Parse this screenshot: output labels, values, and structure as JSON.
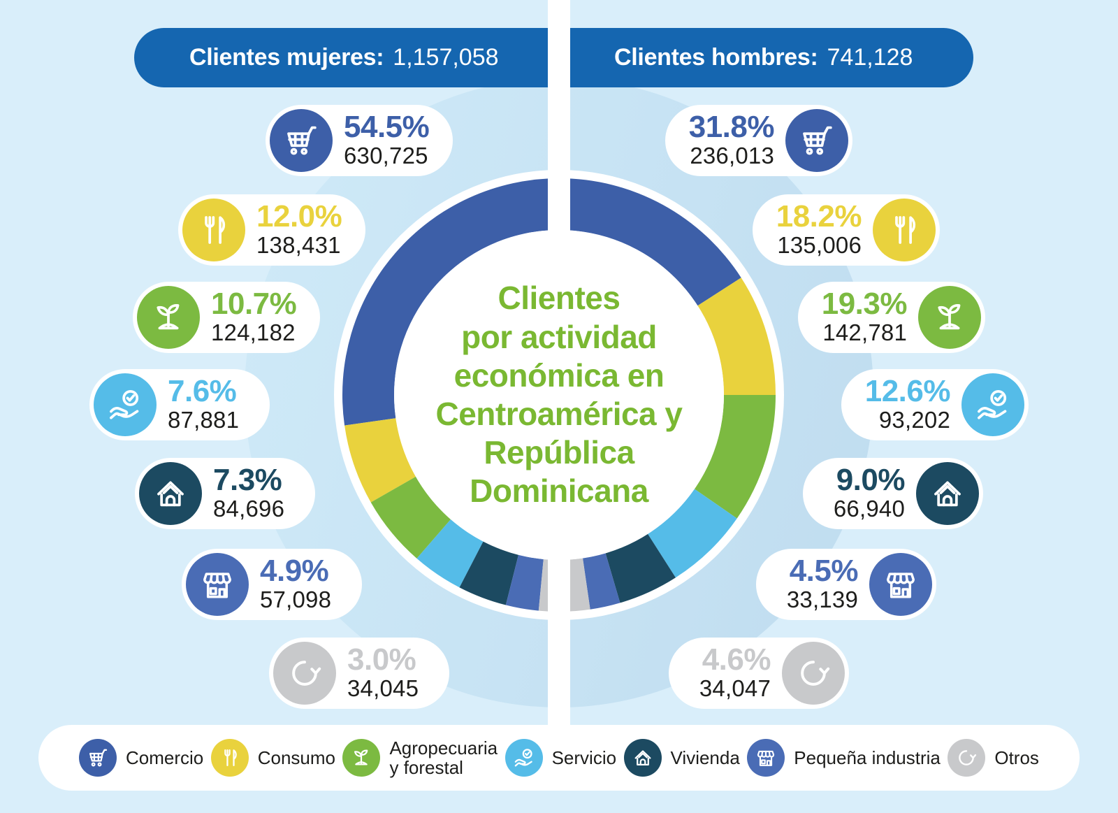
{
  "page": {
    "background_color": "#d9eefa",
    "panel_circle_color": "#c6e2f3",
    "divider_color": "#ffffff",
    "text_color": "#1d1d1b"
  },
  "headers": {
    "bg_color": "#1566b0",
    "women": {
      "label": "Clientes mujeres:",
      "value": "1,157,058"
    },
    "men": {
      "label": "Clientes hombres:",
      "value": "741,128"
    }
  },
  "center": {
    "title": "Clientes\npor actividad\neconómica en\nCentroamérica y\nRepública\nDominicana",
    "title_color": "#7ab832"
  },
  "categories": [
    {
      "id": "comercio",
      "label": "Comercio",
      "legend_lines": "Comercio",
      "icon": "cart-icon",
      "color": "#3d5fa8"
    },
    {
      "id": "consumo",
      "label": "Consumo",
      "legend_lines": "Consumo",
      "icon": "cutlery-icon",
      "color": "#e9d23d"
    },
    {
      "id": "agropecuaria-forestal",
      "label": "Agropecuaria y forestal",
      "legend_lines": "Agropecuaria\ny forestal",
      "icon": "plant-icon",
      "color": "#7cba41"
    },
    {
      "id": "servicio",
      "label": "Servicio",
      "legend_lines": "Servicio",
      "icon": "hand-check-icon",
      "color": "#55bce8"
    },
    {
      "id": "vivienda",
      "label": "Vivienda",
      "legend_lines": "Vivienda",
      "icon": "house-icon",
      "color": "#1c4a61"
    },
    {
      "id": "pequena-industria",
      "label": "Pequeña industria",
      "legend_lines": "Pequeña industria",
      "icon": "store-icon",
      "color": "#4a6cb5"
    },
    {
      "id": "otros",
      "label": "Otros",
      "legend_lines": "Otros",
      "icon": "refresh-icon",
      "color": "#c8c9cb"
    }
  ],
  "chart_data": {
    "type": "pie",
    "subtype": "double-half-donut",
    "title": "Clientes por actividad económica en Centroamérica y República Dominicana",
    "legend_position": "bottom",
    "categories": [
      "Comercio",
      "Consumo",
      "Agropecuaria y forestal",
      "Servicio",
      "Vivienda",
      "Pequeña industria",
      "Otros"
    ],
    "colors": [
      "#3d5fa8",
      "#e9d23d",
      "#7cba41",
      "#55bce8",
      "#1c4a61",
      "#4a6cb5",
      "#c8c9cb"
    ],
    "series": [
      {
        "name": "Clientes mujeres",
        "total": "1,157,058",
        "side": "left",
        "values_pct": [
          54.5,
          12.0,
          10.7,
          7.6,
          7.3,
          4.9,
          3.0
        ],
        "values_abs": [
          "630,725",
          "138,431",
          "124,182",
          "87,881",
          "84,696",
          "57,098",
          "34,045"
        ]
      },
      {
        "name": "Clientes hombres",
        "total": "741,128",
        "side": "right",
        "values_pct": [
          31.8,
          18.2,
          19.3,
          12.6,
          9.0,
          4.5,
          4.6
        ],
        "values_abs": [
          "236,013",
          "135,006",
          "142,781",
          "93,202",
          "66,940",
          "33,139",
          "34,047"
        ]
      }
    ]
  }
}
